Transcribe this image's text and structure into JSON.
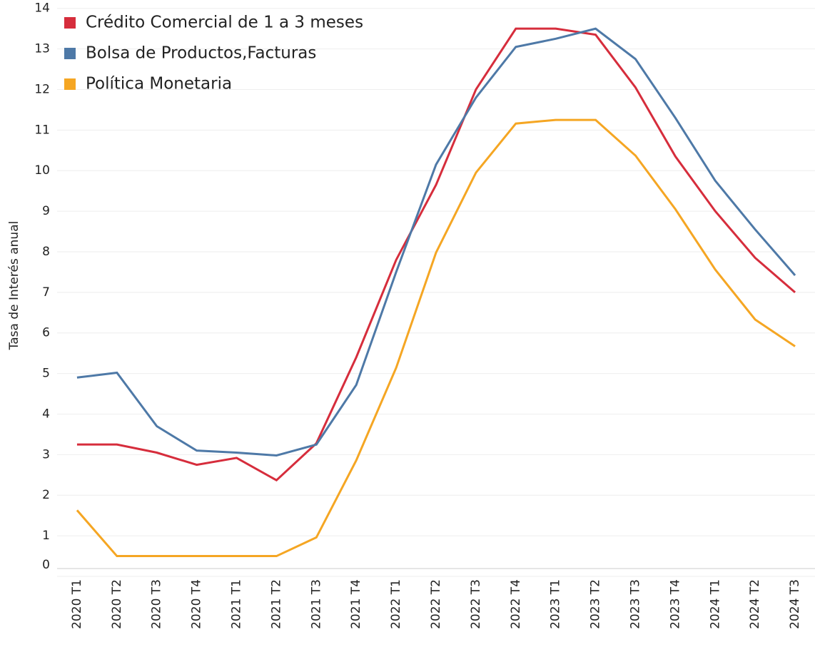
{
  "chart_data": {
    "type": "line",
    "y_label": "Tasa de Interés anual",
    "categories": [
      "2020 T1",
      "2020 T2",
      "2020 T3",
      "2020 T4",
      "2021 T1",
      "2021 T2",
      "2021 T3",
      "2021 T4",
      "2022 T1",
      "2022 T2",
      "2022 T3",
      "2022 T4",
      "2023 T1",
      "2023 T2",
      "2023 T3",
      "2023 T4",
      "2024 T1",
      "2024 T2",
      "2024 T3"
    ],
    "series": [
      {
        "name": "Crédito Comercial de 1 a 3 meses",
        "color": "#d62d3c",
        "values": [
          3.25,
          3.25,
          3.05,
          2.75,
          2.92,
          2.37,
          3.28,
          5.4,
          7.8,
          9.65,
          12.0,
          13.5,
          13.5,
          13.35,
          12.05,
          10.35,
          9.0,
          7.85,
          7.0
        ]
      },
      {
        "name": "Bolsa de Productos,Facturas",
        "color": "#4e79a7",
        "values": [
          4.9,
          5.02,
          3.7,
          3.1,
          3.05,
          2.98,
          3.25,
          4.72,
          7.5,
          10.15,
          11.8,
          13.05,
          13.25,
          13.5,
          12.75,
          11.3,
          9.75,
          8.55,
          7.42
        ]
      },
      {
        "name": "Política Monetaria",
        "color": "#f5a623",
        "values": [
          1.63,
          0.5,
          0.5,
          0.5,
          0.5,
          0.5,
          0.96,
          2.86,
          5.14,
          7.98,
          9.95,
          11.16,
          11.25,
          11.25,
          10.37,
          9.05,
          7.56,
          6.33,
          5.67
        ]
      }
    ],
    "ylim": [
      0,
      14.1
    ],
    "yticks": [
      0,
      1,
      2,
      3,
      4,
      5,
      6,
      7,
      8,
      9,
      10,
      11,
      12,
      13,
      14
    ],
    "grid": true
  }
}
